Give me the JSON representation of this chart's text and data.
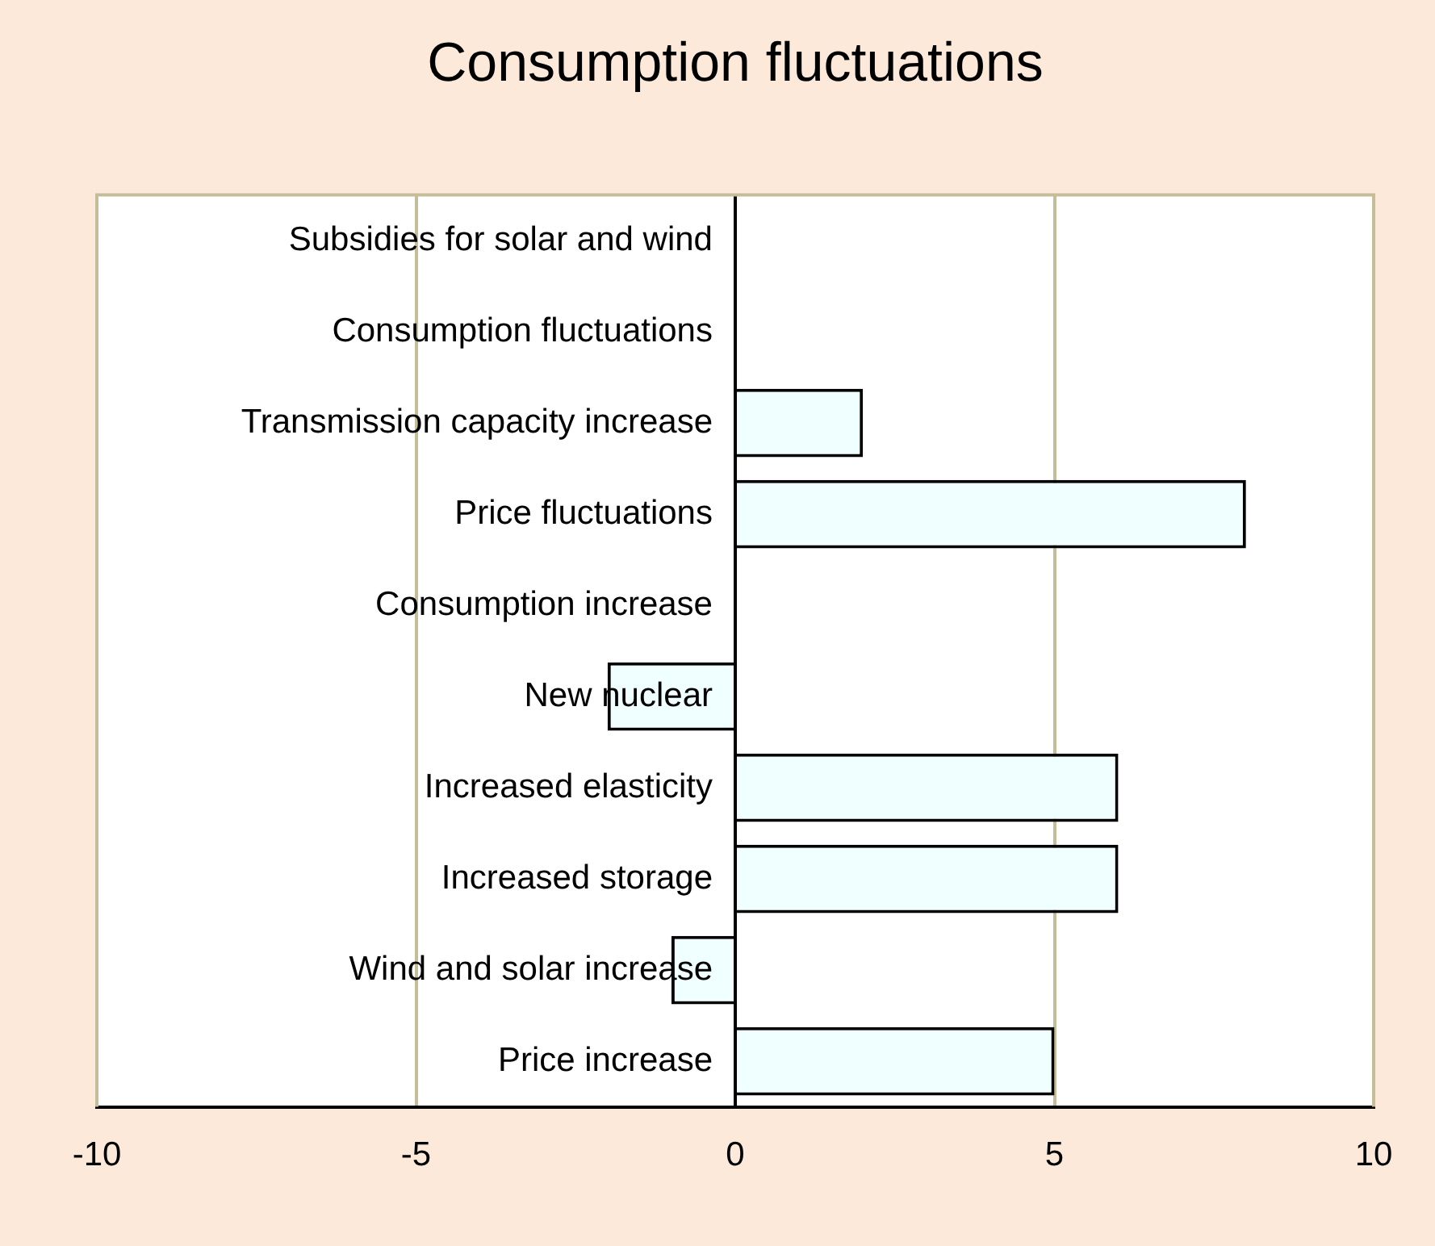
{
  "chart_data": {
    "type": "bar",
    "orientation": "horizontal",
    "title": "Consumption fluctuations",
    "categories": [
      "Subsidies for solar and wind",
      "Consumption fluctuations",
      "Transmission capacity increase",
      "Price fluctuations",
      "Consumption increase",
      "New nuclear",
      "Increased elasticity",
      "Increased storage",
      "Wind and solar increase",
      "Price increase"
    ],
    "values": [
      0,
      0,
      2,
      8,
      0,
      -2,
      6,
      6,
      -1,
      5
    ],
    "color": "#f0ffff",
    "xlim": [
      -10,
      10
    ],
    "xticks": [
      -10,
      -5,
      0,
      5,
      10
    ],
    "grid": "x",
    "legend": false
  }
}
